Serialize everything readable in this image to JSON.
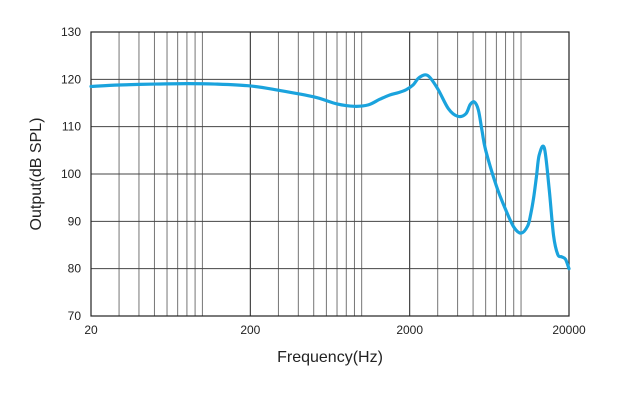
{
  "chart_data": {
    "type": "line",
    "title": "",
    "xlabel": "Frequency(Hz)",
    "ylabel": "Output(dB SPL)",
    "xscale": "log",
    "xlim": [
      20,
      20000
    ],
    "ylim": [
      70,
      130
    ],
    "xticks": [
      20,
      200,
      2000,
      20000
    ],
    "yticks": [
      70,
      80,
      90,
      100,
      110,
      120,
      130
    ],
    "grid": true,
    "line_color": "#1aa3dd",
    "series": [
      {
        "name": "",
        "x": [
          20,
          30,
          50,
          80,
          120,
          200,
          300,
          500,
          700,
          900,
          1100,
          1300,
          1500,
          1700,
          1900,
          2100,
          2300,
          2600,
          3000,
          3500,
          4000,
          4500,
          4800,
          5100,
          5400,
          5700,
          6000,
          7000,
          8000,
          9000,
          10000,
          11000,
          11500,
          12000,
          12500,
          13000,
          14000,
          15000,
          16000,
          17000,
          18000,
          19000,
          20000
        ],
        "y": [
          118.5,
          118.8,
          119.0,
          119.1,
          119.0,
          118.6,
          117.7,
          116.3,
          114.8,
          114.3,
          114.6,
          115.8,
          116.7,
          117.2,
          117.8,
          118.8,
          120.4,
          120.8,
          118.0,
          113.8,
          112.2,
          112.7,
          114.7,
          115.2,
          113.5,
          109.0,
          105.0,
          97.5,
          92.5,
          88.8,
          87.5,
          89.0,
          91.5,
          95.0,
          99.5,
          104.0,
          105.5,
          97.0,
          87.0,
          83.0,
          82.5,
          82.0,
          80.0
        ]
      }
    ]
  }
}
